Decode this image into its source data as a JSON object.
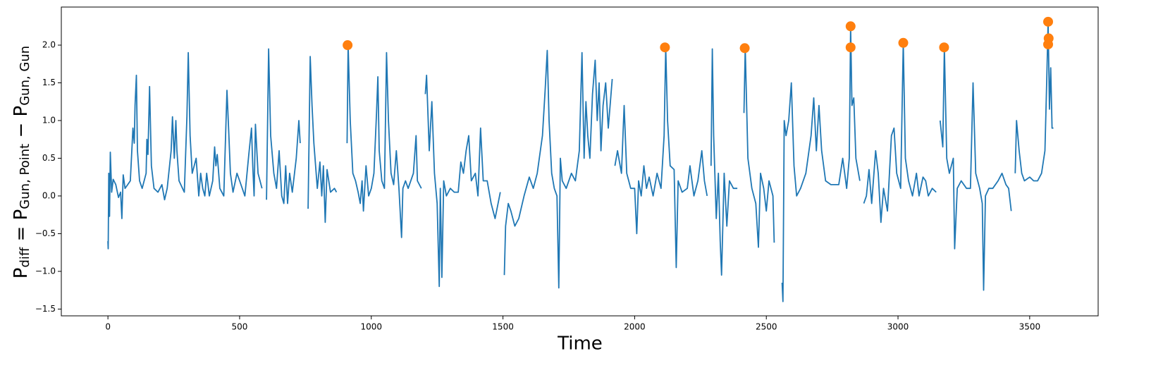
{
  "chart_data": {
    "type": "line",
    "x_label": "Time",
    "y_label": [
      "P",
      "diff",
      " = P",
      "Gun, Point",
      " − P",
      "Gun, Gun"
    ],
    "xlim": [
      -177,
      3760
    ],
    "ylim": [
      -1.59,
      2.505
    ],
    "xticks": [
      0,
      500,
      1000,
      1500,
      2000,
      2500,
      3000,
      3500
    ],
    "yticks": [
      {
        "value": -1.5,
        "label": "−1.5"
      },
      {
        "value": -1,
        "label": "−1.0"
      },
      {
        "value": -0.5,
        "label": "−0.5"
      },
      {
        "value": 0,
        "label": "0.0"
      },
      {
        "value": 0.5,
        "label": "0.5"
      },
      {
        "value": 1,
        "label": "1.0"
      },
      {
        "value": 1.5,
        "label": "1.5"
      },
      {
        "value": 2,
        "label": "2.0"
      }
    ],
    "series": [
      {
        "type": "line",
        "color": "#1f77b4",
        "x": [
          0,
          1,
          3,
          6,
          9,
          14,
          20,
          30,
          40,
          48,
          53,
          58,
          65,
          75,
          85,
          95,
          100,
          103,
          108,
          112,
          120,
          130,
          145,
          148,
          152,
          158,
          165,
          175,
          190,
          205,
          215,
          225,
          240,
          245,
          252,
          258,
          262,
          270,
          290,
          300,
          305,
          312,
          320,
          335,
          345,
          352,
          360,
          368,
          375,
          385,
          398,
          405,
          410,
          415,
          425,
          440,
          452,
          458,
          465,
          475,
          490,
          500,
          510,
          520,
          535,
          545,
          550,
          555,
          560,
          570,
          585,
          596,
          602,
          610,
          618,
          630,
          640,
          650,
          660,
          668,
          675,
          682,
          690,
          700,
          715,
          725,
          730,
          745,
          760,
          768,
          775,
          782,
          795,
          805,
          812,
          818,
          825,
          832,
          845,
          860,
          868,
          890,
          908,
          912,
          920,
          930,
          940,
          950,
          958,
          965,
          970,
          980,
          990,
          1000,
          1010,
          1020,
          1025,
          1030,
          1040,
          1050,
          1058,
          1065,
          1075,
          1085,
          1095,
          1105,
          1115,
          1120,
          1130,
          1140,
          1160,
          1170,
          1175,
          1190,
          1197,
          1205,
          1210,
          1220,
          1230,
          1240,
          1250,
          1258,
          1262,
          1268,
          1275,
          1285,
          1300,
          1315,
          1330,
          1340,
          1350,
          1360,
          1370,
          1380,
          1395,
          1405,
          1415,
          1425,
          1440,
          1455,
          1470,
          1490,
          1498,
          1505,
          1510,
          1520,
          1530,
          1545,
          1560,
          1580,
          1600,
          1615,
          1630,
          1650,
          1660,
          1668,
          1675,
          1685,
          1695,
          1705,
          1712,
          1718,
          1725,
          1740,
          1760,
          1775,
          1790,
          1800,
          1808,
          1815,
          1822,
          1830,
          1840,
          1850,
          1858,
          1865,
          1872,
          1880,
          1890,
          1900,
          1915,
          1920,
          1925,
          1935,
          1950,
          1960,
          1970,
          1985,
          2000,
          2008,
          2015,
          2025,
          2035,
          2045,
          2055,
          2070,
          2085,
          2100,
          2112,
          2118,
          2125,
          2135,
          2150,
          2158,
          2165,
          2180,
          2200,
          2210,
          2225,
          2240,
          2255,
          2265,
          2275,
          2282,
          2290,
          2295,
          2300,
          2310,
          2318,
          2325,
          2330,
          2340,
          2350,
          2360,
          2375,
          2390,
          2402,
          2415,
          2420,
          2430,
          2445,
          2460,
          2470,
          2478,
          2490,
          2500,
          2510,
          2525,
          2530,
          2545,
          2560,
          2563,
          2568,
          2575,
          2585,
          2595,
          2605,
          2615,
          2630,
          2650,
          2670,
          2680,
          2690,
          2700,
          2710,
          2725,
          2745,
          2760,
          2775,
          2790,
          2805,
          2815,
          2820,
          2825,
          2832,
          2840,
          2855,
          2862,
          2870,
          2880,
          2890,
          2900,
          2915,
          2925,
          2935,
          2945,
          2960,
          2975,
          2985,
          2995,
          3010,
          3020,
          3028,
          3040,
          3055,
          3070,
          3080,
          3095,
          3105,
          3115,
          3130,
          3145,
          3152,
          3160,
          3170,
          3176,
          3185,
          3195,
          3210,
          3215,
          3225,
          3240,
          3260,
          3275,
          3285,
          3295,
          3310,
          3320,
          3325,
          3332,
          3345,
          3360,
          3380,
          3395,
          3410,
          3420,
          3430,
          3437,
          3445,
          3450,
          3460,
          3470,
          3480,
          3500,
          3515,
          3530,
          3545,
          3558,
          3565,
          3570,
          3575,
          3580,
          3585,
          3590
        ],
        "values": [
          -0.6,
          -0.7,
          0.3,
          -0.27,
          0.58,
          0.05,
          0.22,
          0.15,
          -0.02,
          0.05,
          -0.3,
          0.28,
          0.1,
          0.15,
          0.2,
          0.9,
          0.7,
          1.2,
          1.6,
          0.6,
          0.2,
          0.1,
          0.3,
          0.75,
          0.55,
          1.45,
          0.4,
          0.1,
          0.05,
          0.15,
          -0.05,
          0.1,
          0.6,
          1.05,
          0.5,
          1.0,
          0.6,
          0.2,
          0.05,
          1.05,
          1.9,
          0.8,
          0.3,
          0.5,
          0.0,
          0.3,
          0.1,
          0.0,
          0.3,
          0.0,
          0.2,
          0.65,
          0.4,
          0.55,
          0.1,
          0.0,
          1.4,
          0.9,
          0.3,
          0.05,
          0.3,
          0.2,
          0.1,
          0.0,
          0.55,
          0.9,
          0.4,
          0.0,
          0.95,
          0.3,
          0.1,
          null,
          -0.05,
          1.95,
          0.8,
          0.3,
          0.1,
          0.6,
          0.0,
          -0.1,
          0.4,
          -0.1,
          0.3,
          0.05,
          0.5,
          1.0,
          0.7,
          null,
          -0.17,
          1.85,
          1.2,
          0.7,
          0.1,
          0.45,
          0.0,
          0.4,
          -0.35,
          0.35,
          0.05,
          0.1,
          0.05,
          null,
          0.7,
          2.0,
          1.0,
          0.3,
          0.2,
          0.05,
          -0.1,
          0.2,
          -0.2,
          0.4,
          0.0,
          0.1,
          0.3,
          1.1,
          1.58,
          0.6,
          0.2,
          0.1,
          1.9,
          1.0,
          0.3,
          0.15,
          0.6,
          0.1,
          -0.55,
          0.1,
          0.2,
          0.1,
          0.3,
          0.8,
          0.2,
          0.1,
          null,
          1.35,
          1.6,
          0.6,
          1.25,
          0.3,
          -0.1,
          -1.2,
          0.1,
          -1.08,
          0.2,
          0.0,
          0.1,
          0.05,
          0.05,
          0.45,
          0.3,
          0.6,
          0.8,
          0.2,
          0.3,
          0.0,
          0.9,
          0.2,
          0.2,
          -0.1,
          -0.3,
          0.05,
          null,
          -1.05,
          -0.4,
          -0.1,
          -0.2,
          -0.4,
          -0.3,
          0.0,
          0.25,
          0.1,
          0.3,
          0.8,
          1.4,
          1.93,
          1.0,
          0.3,
          0.1,
          0.0,
          -1.22,
          0.5,
          0.2,
          0.1,
          0.3,
          0.2,
          0.6,
          1.9,
          0.5,
          1.25,
          0.8,
          0.5,
          1.35,
          1.8,
          1.0,
          1.5,
          0.6,
          1.2,
          1.5,
          0.9,
          1.55,
          null,
          0.4,
          0.6,
          0.3,
          1.2,
          0.3,
          0.1,
          0.1,
          -0.5,
          0.2,
          0.0,
          0.4,
          0.1,
          0.25,
          0.0,
          0.3,
          0.1,
          0.8,
          1.97,
          1.0,
          0.4,
          0.35,
          -0.95,
          0.2,
          0.05,
          0.1,
          0.4,
          0.0,
          0.2,
          0.6,
          0.2,
          0.0,
          null,
          0.4,
          1.95,
          0.8,
          -0.3,
          0.3,
          -0.6,
          -1.05,
          0.3,
          -0.4,
          0.2,
          0.1,
          0.1,
          null,
          1.1,
          1.96,
          0.5,
          0.1,
          -0.1,
          -0.68,
          0.3,
          0.1,
          -0.2,
          0.2,
          0.0,
          -0.62,
          null,
          -1.15,
          -1.4,
          1.0,
          0.8,
          1.0,
          1.5,
          0.4,
          0.0,
          0.1,
          0.3,
          0.8,
          1.3,
          0.6,
          1.2,
          0.6,
          0.2,
          0.15,
          0.15,
          0.15,
          0.5,
          0.1,
          0.5,
          2.25,
          1.2,
          1.3,
          0.5,
          0.2,
          null,
          -0.1,
          0.0,
          0.35,
          -0.1,
          0.6,
          0.3,
          -0.35,
          0.1,
          -0.2,
          0.8,
          0.9,
          0.3,
          0.1,
          2.03,
          0.5,
          0.2,
          0.0,
          0.3,
          0.0,
          0.25,
          0.2,
          0.0,
          0.1,
          0.05,
          null,
          1.0,
          0.65,
          1.97,
          0.5,
          0.3,
          0.5,
          -0.7,
          0.1,
          0.2,
          0.1,
          0.1,
          1.5,
          0.3,
          0.1,
          -0.1,
          -1.25,
          0.0,
          0.1,
          0.1,
          0.2,
          0.3,
          0.15,
          0.1,
          -0.2,
          null,
          0.3,
          1.0,
          0.6,
          0.3,
          0.2,
          0.25,
          0.2,
          0.2,
          0.3,
          0.6,
          1.55,
          2.31,
          1.15,
          1.7,
          0.9,
          0.9
        ]
      },
      {
        "type": "scatter",
        "color": "#ff7f0e",
        "x": [
          910,
          2115,
          2418,
          2820,
          2820,
          3020,
          3175,
          3570,
          3572,
          3570
        ],
        "values": [
          2.0,
          1.97,
          1.96,
          2.25,
          1.97,
          2.03,
          1.97,
          2.31,
          2.09,
          2.01
        ]
      }
    ]
  }
}
